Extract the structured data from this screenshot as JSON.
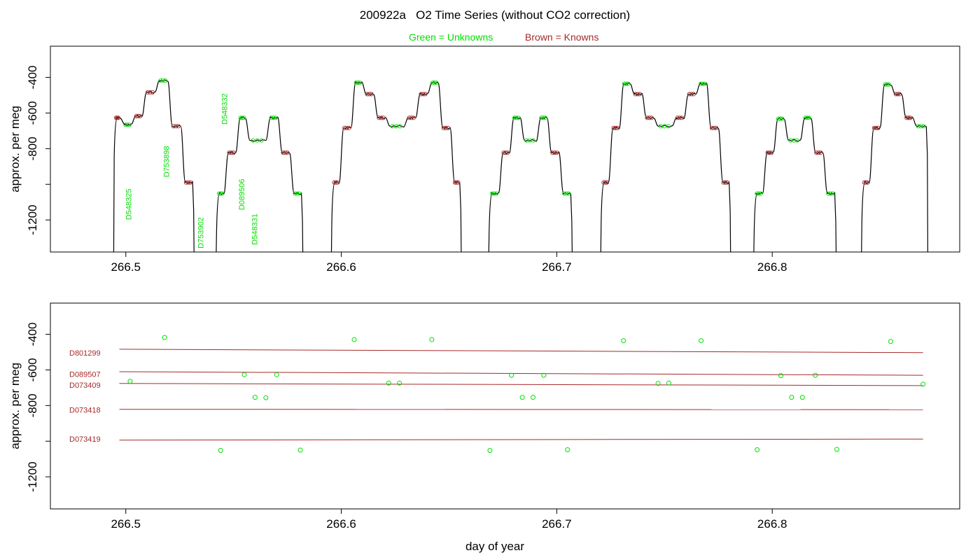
{
  "title": "200922a   O2 Time Series (without CO2 correction)",
  "legend": {
    "unknowns": "Green = Unknowns",
    "knowns": "Brown = Knowns"
  },
  "colors": {
    "unknowns": "#00e000",
    "knowns": "#a52a2a",
    "trace": "#000000"
  },
  "chart_data": [
    {
      "type": "line",
      "name": "top-panel",
      "title": "200922a   O2 Time Series (without CO2 correction)",
      "ylabel": "approx. per meg",
      "xlabel": "",
      "xlim": [
        266.465,
        266.887
      ],
      "ylim": [
        -1380,
        -225
      ],
      "x_ticks": [
        266.5,
        266.6,
        266.7,
        266.8
      ],
      "x_tick_labels": [
        "266.5",
        "266.6",
        "266.7",
        "266.8"
      ],
      "y_ticks": [
        -400,
        -600,
        -800,
        -1000,
        -1200
      ],
      "y_tick_labels": [
        "-400",
        "-600",
        "-800",
        "",
        "-1200"
      ],
      "trace_segments": [
        {
          "steps": [
            {
              "x0": 266.495,
              "x1": 266.497,
              "y": -627,
              "m": "k"
            },
            {
              "x0": 266.499,
              "x1": 266.5025,
              "y": -666,
              "m": "u"
            },
            {
              "x0": 266.504,
              "x1": 266.5075,
              "y": -617,
              "m": "k"
            },
            {
              "x0": 266.509,
              "x1": 266.5135,
              "y": -484,
              "m": "k"
            },
            {
              "x0": 266.515,
              "x1": 266.5195,
              "y": -418,
              "m": "u"
            },
            {
              "x0": 266.521,
              "x1": 266.5255,
              "y": -674,
              "m": "k"
            },
            {
              "x0": 266.527,
              "x1": 266.531,
              "y": -990,
              "m": "k"
            }
          ]
        },
        {
          "steps": [
            {
              "x0": 266.5425,
              "x1": 266.5455,
              "y": -1052,
              "m": "u"
            },
            {
              "x0": 266.547,
              "x1": 266.551,
              "y": -823,
              "m": "k"
            },
            {
              "x0": 266.5525,
              "x1": 266.5555,
              "y": -627,
              "m": "u"
            },
            {
              "x0": 266.557,
              "x1": 266.565,
              "y": -754,
              "m": "u"
            },
            {
              "x0": 266.5665,
              "x1": 266.5705,
              "y": -627,
              "m": "u"
            },
            {
              "x0": 266.572,
              "x1": 266.576,
              "y": -823,
              "m": "k"
            },
            {
              "x0": 266.5775,
              "x1": 266.5815,
              "y": -1052,
              "m": "u"
            }
          ]
        },
        {
          "steps": [
            {
              "x0": 266.596,
              "x1": 266.599,
              "y": -990,
              "m": "k"
            },
            {
              "x0": 266.6005,
              "x1": 266.6045,
              "y": -684,
              "m": "k"
            },
            {
              "x0": 266.606,
              "x1": 266.6095,
              "y": -430,
              "m": "u"
            },
            {
              "x0": 266.611,
              "x1": 266.615,
              "y": -494,
              "m": "k"
            },
            {
              "x0": 266.6165,
              "x1": 266.6205,
              "y": -627,
              "m": "k"
            },
            {
              "x0": 266.622,
              "x1": 266.629,
              "y": -674,
              "m": "u"
            },
            {
              "x0": 266.6305,
              "x1": 266.6345,
              "y": -627,
              "m": "k"
            },
            {
              "x0": 266.636,
              "x1": 266.64,
              "y": -494,
              "m": "k"
            },
            {
              "x0": 266.6415,
              "x1": 266.645,
              "y": -430,
              "m": "u"
            },
            {
              "x0": 266.6465,
              "x1": 266.6505,
              "y": -684,
              "m": "k"
            },
            {
              "x0": 266.652,
              "x1": 266.655,
              "y": -990,
              "m": "k"
            }
          ]
        },
        {
          "steps": [
            {
              "x0": 266.669,
              "x1": 266.673,
              "y": -1052,
              "m": "u"
            },
            {
              "x0": 266.6745,
              "x1": 266.678,
              "y": -823,
              "m": "k"
            },
            {
              "x0": 266.6795,
              "x1": 266.683,
              "y": -627,
              "m": "u"
            },
            {
              "x0": 266.6845,
              "x1": 266.6905,
              "y": -754,
              "m": "u"
            },
            {
              "x0": 266.692,
              "x1": 266.6955,
              "y": -627,
              "m": "u"
            },
            {
              "x0": 266.697,
              "x1": 266.701,
              "y": -823,
              "m": "k"
            },
            {
              "x0": 266.7025,
              "x1": 266.7065,
              "y": -1052,
              "m": "u"
            }
          ]
        },
        {
          "steps": [
            {
              "x0": 266.721,
              "x1": 266.724,
              "y": -990,
              "m": "k"
            },
            {
              "x0": 266.7255,
              "x1": 266.729,
              "y": -684,
              "m": "k"
            },
            {
              "x0": 266.7305,
              "x1": 266.734,
              "y": -436,
              "m": "u"
            },
            {
              "x0": 266.7355,
              "x1": 266.7395,
              "y": -494,
              "m": "k"
            },
            {
              "x0": 266.741,
              "x1": 266.745,
              "y": -627,
              "m": "k"
            },
            {
              "x0": 266.7465,
              "x1": 266.7535,
              "y": -674,
              "m": "u"
            },
            {
              "x0": 266.755,
              "x1": 266.759,
              "y": -627,
              "m": "k"
            },
            {
              "x0": 266.7605,
              "x1": 266.7645,
              "y": -494,
              "m": "k"
            },
            {
              "x0": 266.766,
              "x1": 266.7695,
              "y": -436,
              "m": "u"
            },
            {
              "x0": 266.771,
              "x1": 266.775,
              "y": -684,
              "m": "k"
            },
            {
              "x0": 266.7765,
              "x1": 266.78,
              "y": -990,
              "m": "k"
            }
          ]
        },
        {
          "steps": [
            {
              "x0": 266.792,
              "x1": 266.7955,
              "y": -1052,
              "m": "u"
            },
            {
              "x0": 266.797,
              "x1": 266.8005,
              "y": -823,
              "m": "k"
            },
            {
              "x0": 266.802,
              "x1": 266.8055,
              "y": -632,
              "m": "u"
            },
            {
              "x0": 266.807,
              "x1": 266.813,
              "y": -754,
              "m": "u"
            },
            {
              "x0": 266.8145,
              "x1": 266.818,
              "y": -627,
              "m": "u"
            },
            {
              "x0": 266.8195,
              "x1": 266.8235,
              "y": -823,
              "m": "k"
            },
            {
              "x0": 266.825,
              "x1": 266.829,
              "y": -1052,
              "m": "u"
            }
          ]
        },
        {
          "steps": [
            {
              "x0": 266.842,
              "x1": 266.845,
              "y": -990,
              "m": "k"
            },
            {
              "x0": 266.8465,
              "x1": 266.85,
              "y": -684,
              "m": "k"
            },
            {
              "x0": 266.8515,
              "x1": 266.855,
              "y": -440,
              "m": "u"
            },
            {
              "x0": 266.8565,
              "x1": 266.86,
              "y": -494,
              "m": "k"
            },
            {
              "x0": 266.8615,
              "x1": 266.865,
              "y": -627,
              "m": "k"
            },
            {
              "x0": 266.8665,
              "x1": 266.8715,
              "y": -674,
              "m": "u"
            }
          ]
        }
      ],
      "sample_labels": [
        {
          "text": "D548325",
          "x": 266.5025,
          "y": -1200
        },
        {
          "text": "D753898",
          "x": 266.52,
          "y": -960
        },
        {
          "text": "D753902",
          "x": 266.536,
          "y": -1360
        },
        {
          "text": "D548332",
          "x": 266.547,
          "y": -665
        },
        {
          "text": "D089506",
          "x": 266.555,
          "y": -1145
        },
        {
          "text": "D548331",
          "x": 266.561,
          "y": -1340
        }
      ]
    },
    {
      "type": "scatter",
      "name": "bottom-panel",
      "xlabel": "day of year",
      "ylabel": "approx. per meg",
      "xlim": [
        266.465,
        266.887
      ],
      "ylim": [
        -1380,
        -225
      ],
      "x_ticks": [
        266.5,
        266.6,
        266.7,
        266.8
      ],
      "x_tick_labels": [
        "266.5",
        "266.6",
        "266.7",
        "266.8"
      ],
      "y_ticks": [
        -400,
        -600,
        -800,
        -1000,
        -1200
      ],
      "y_tick_labels": [
        "-400",
        "-600",
        "-800",
        "",
        "-1200"
      ],
      "standards": [
        {
          "name": "D801299",
          "label_y": -503,
          "x": [
            266.497,
            266.87
          ],
          "y": [
            -484,
            -503
          ]
        },
        {
          "name": "D089507",
          "label_y": -624,
          "x": [
            266.497,
            266.87
          ],
          "y": [
            -610,
            -630
          ]
        },
        {
          "name": "D073409",
          "label_y": -684,
          "x": [
            266.497,
            266.87
          ],
          "y": [
            -676,
            -688
          ]
        },
        {
          "name": "D073418",
          "label_y": -824,
          "x": [
            266.497,
            266.87
          ],
          "y": [
            -821,
            -823
          ]
        },
        {
          "name": "D073419",
          "label_y": -988,
          "x": [
            266.497,
            266.87
          ],
          "y": [
            -994,
            -988
          ]
        }
      ],
      "unknowns": {
        "x": [
          266.502,
          266.518,
          266.544,
          266.555,
          266.56,
          266.565,
          266.57,
          266.581,
          266.606,
          266.622,
          266.627,
          266.642,
          266.669,
          266.679,
          266.684,
          266.689,
          266.694,
          266.705,
          266.731,
          266.747,
          266.752,
          266.767,
          266.793,
          266.804,
          266.809,
          266.814,
          266.82,
          266.83,
          266.855,
          266.87
        ],
        "y": [
          -664,
          -418,
          -1052,
          -627,
          -754,
          -756,
          -627,
          -1050,
          -430,
          -674,
          -674,
          -430,
          -1052,
          -630,
          -754,
          -754,
          -630,
          -1048,
          -436,
          -676,
          -674,
          -436,
          -1048,
          -632,
          -754,
          -754,
          -630,
          -1046,
          -440,
          -680
        ]
      }
    }
  ]
}
